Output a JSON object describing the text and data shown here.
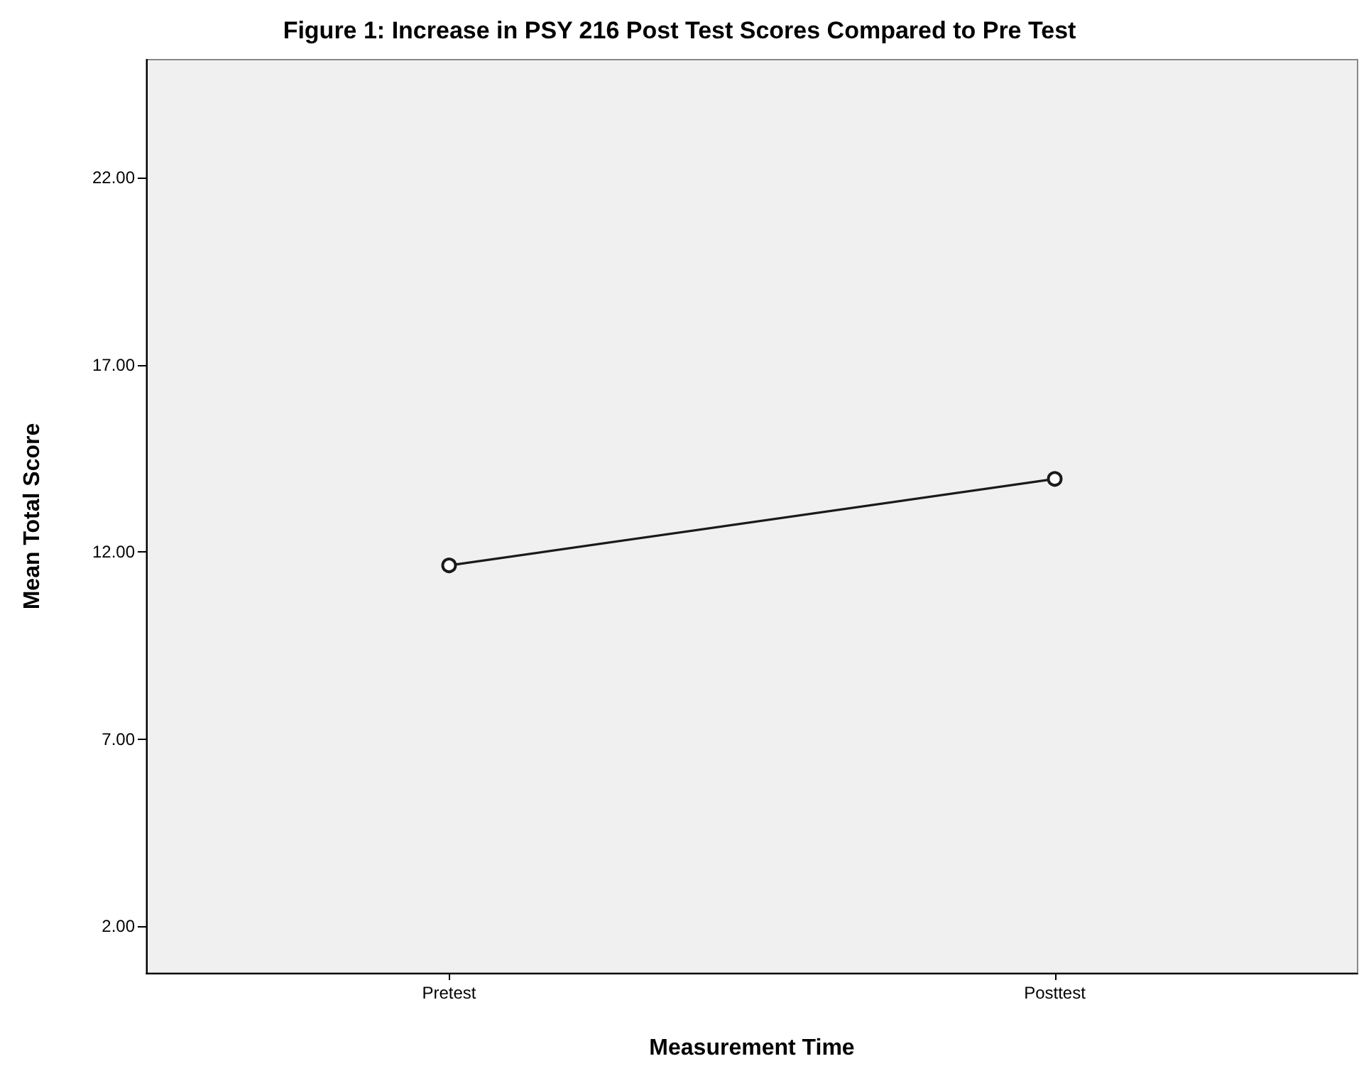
{
  "chart_data": {
    "type": "line",
    "title": "Figure 1: Increase in PSY 216 Post Test Scores Compared to Pre Test",
    "xlabel": "Measurement Time",
    "ylabel": "Mean Total Score",
    "categories": [
      "Pretest",
      "Posttest"
    ],
    "series": [
      {
        "color": "#1a1a1a",
        "values": [
          11.64,
          13.95
        ]
      }
    ],
    "ylim": [
      0.75,
      25.15
    ],
    "yticks": [
      {
        "value": 2,
        "label": "2.00"
      },
      {
        "value": 7,
        "label": "7.00"
      },
      {
        "value": 12,
        "label": "12.00"
      },
      {
        "value": 17,
        "label": "17.00"
      },
      {
        "value": 22,
        "label": "22.00"
      }
    ],
    "grid": false,
    "marker": "circle",
    "line_style": "solid"
  }
}
